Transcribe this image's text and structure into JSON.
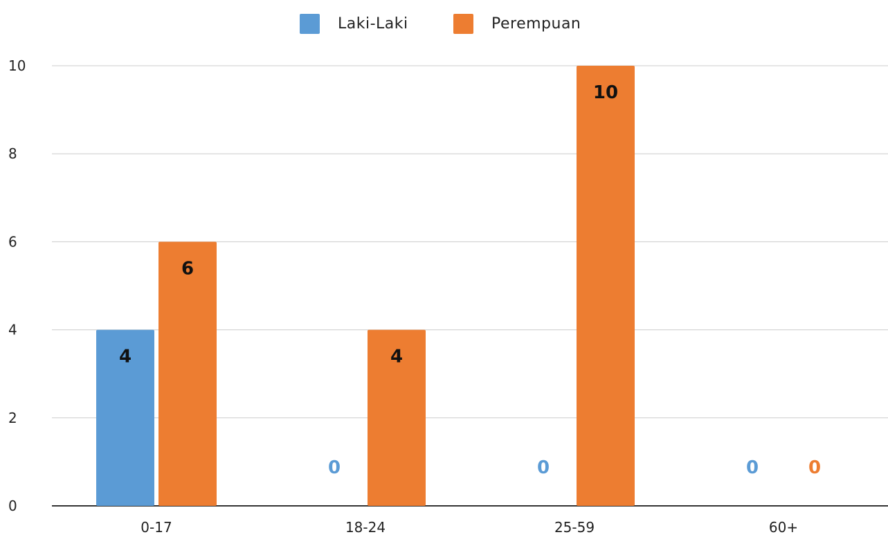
{
  "chart_data": {
    "type": "bar",
    "title": "",
    "xlabel": "",
    "ylabel": "",
    "categories": [
      "0-17",
      "18-24",
      "25-59",
      "60+"
    ],
    "series": [
      {
        "name": "Laki-Laki",
        "values": [
          4,
          0,
          0,
          0
        ],
        "color": "#5b9bd5"
      },
      {
        "name": "Perempuan",
        "values": [
          6,
          4,
          10,
          0
        ],
        "color": "#ed7d31"
      }
    ],
    "ylim": [
      0,
      10
    ],
    "yticks": [
      0,
      2,
      4,
      6,
      8,
      10
    ],
    "grid": true,
    "legend_position": "top",
    "data_labels": true
  }
}
